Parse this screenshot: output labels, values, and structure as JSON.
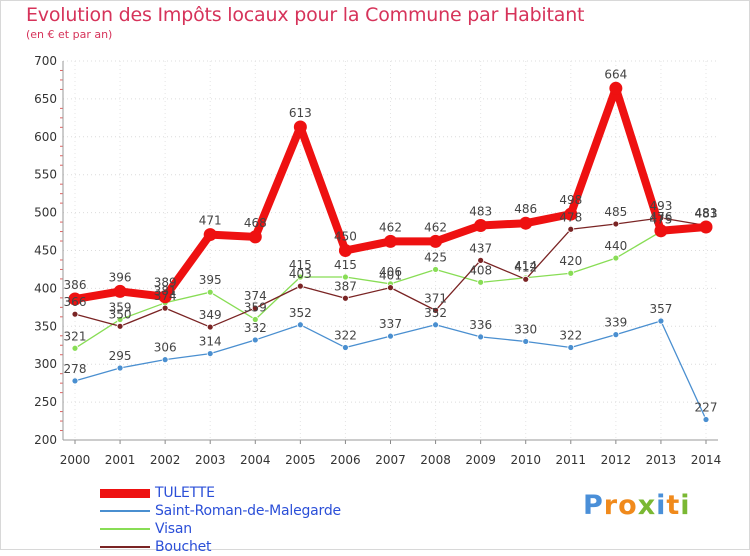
{
  "title": "Evolution des Impôts locaux pour la Commune par Habitant",
  "subtitle": "(en € et par an)",
  "brand": {
    "text": "Proxiti",
    "colors": [
      "#4a8fd8",
      "#f08a1c",
      "#f08a1c",
      "#7ab833",
      "#4a8fd8",
      "#f08a1c",
      "#7ab833"
    ]
  },
  "chart_data": {
    "type": "line",
    "title": "Evolution des Impôts locaux pour la Commune par Habitant",
    "subtitle": "(en € et par an)",
    "xlabel": "",
    "ylabel": "",
    "x": [
      "2000",
      "2001",
      "2002",
      "2003",
      "2004",
      "2005",
      "2006",
      "2007",
      "2008",
      "2009",
      "2010",
      "2011",
      "2012",
      "2013",
      "2014"
    ],
    "ylim": [
      200,
      700
    ],
    "yticks": [
      200,
      250,
      300,
      350,
      400,
      450,
      500,
      550,
      600,
      650,
      700
    ],
    "grid": true,
    "legend_position": "bottom-left",
    "series": [
      {
        "name": "TULETTE",
        "color": "#ee1111",
        "values": [
          386,
          396,
          389,
          471,
          468,
          613,
          450,
          462,
          462,
          483,
          486,
          498,
          664,
          476,
          481
        ],
        "labels": [
          "386",
          "396",
          "389",
          "471",
          "468",
          "613",
          "450",
          "462",
          "462",
          "483",
          "486",
          "498",
          "664",
          "476",
          "481"
        ]
      },
      {
        "name": "Saint-Roman-de-Malegarde",
        "color": "#4a8fd0",
        "values": [
          278,
          295,
          306,
          314,
          332,
          352,
          322,
          337,
          352,
          336,
          330,
          322,
          339,
          357,
          227
        ],
        "labels": [
          "278",
          "295",
          "306",
          "314",
          "332",
          "352",
          "322",
          "337",
          "352",
          "336",
          "330",
          "322",
          "339",
          "357",
          "227"
        ]
      },
      {
        "name": "Visan",
        "color": "#88dd55",
        "values": [
          321,
          359,
          381,
          395,
          359,
          415,
          415,
          406,
          425,
          408,
          414,
          420,
          440,
          475,
          483
        ],
        "labels": [
          "321",
          "359",
          "381",
          "395",
          "359",
          "415",
          "415",
          "406",
          "425",
          "408",
          "414",
          "420",
          "440",
          "475",
          "483"
        ]
      },
      {
        "name": "Bouchet",
        "color": "#7a2424",
        "values": [
          366,
          350,
          374,
          349,
          374,
          403,
          387,
          401,
          371,
          437,
          412,
          478,
          485,
          493,
          483
        ],
        "labels": [
          "366",
          "350",
          "374",
          "349",
          "374",
          "403",
          "387",
          "401",
          "371",
          "437",
          "412",
          "478",
          "485",
          "493",
          "483"
        ]
      }
    ]
  }
}
